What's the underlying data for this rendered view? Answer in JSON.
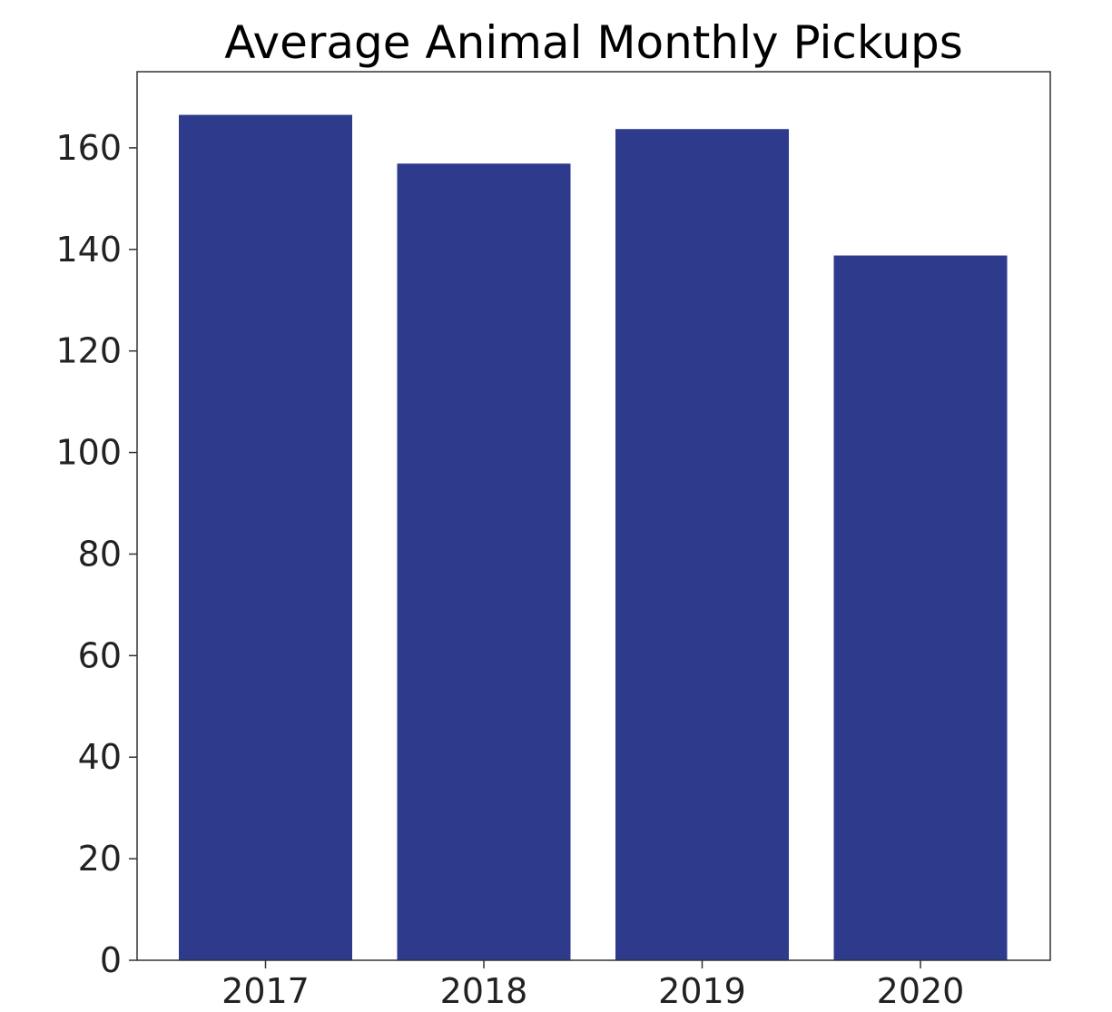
{
  "chart_data": {
    "type": "bar",
    "title": "Average Animal Monthly Pickups",
    "xlabel": "",
    "ylabel": "",
    "categories": [
      "2017",
      "2018",
      "2019",
      "2020"
    ],
    "values": [
      166.5,
      156.9,
      163.7,
      138.8
    ],
    "ylim": [
      0,
      175
    ],
    "yticks": [
      0,
      20,
      40,
      60,
      80,
      100,
      120,
      140,
      160
    ],
    "grid": false,
    "legend": "none",
    "colors": {
      "bar": "#2e3a8c",
      "axis": "#333333",
      "text": "#222222"
    }
  }
}
